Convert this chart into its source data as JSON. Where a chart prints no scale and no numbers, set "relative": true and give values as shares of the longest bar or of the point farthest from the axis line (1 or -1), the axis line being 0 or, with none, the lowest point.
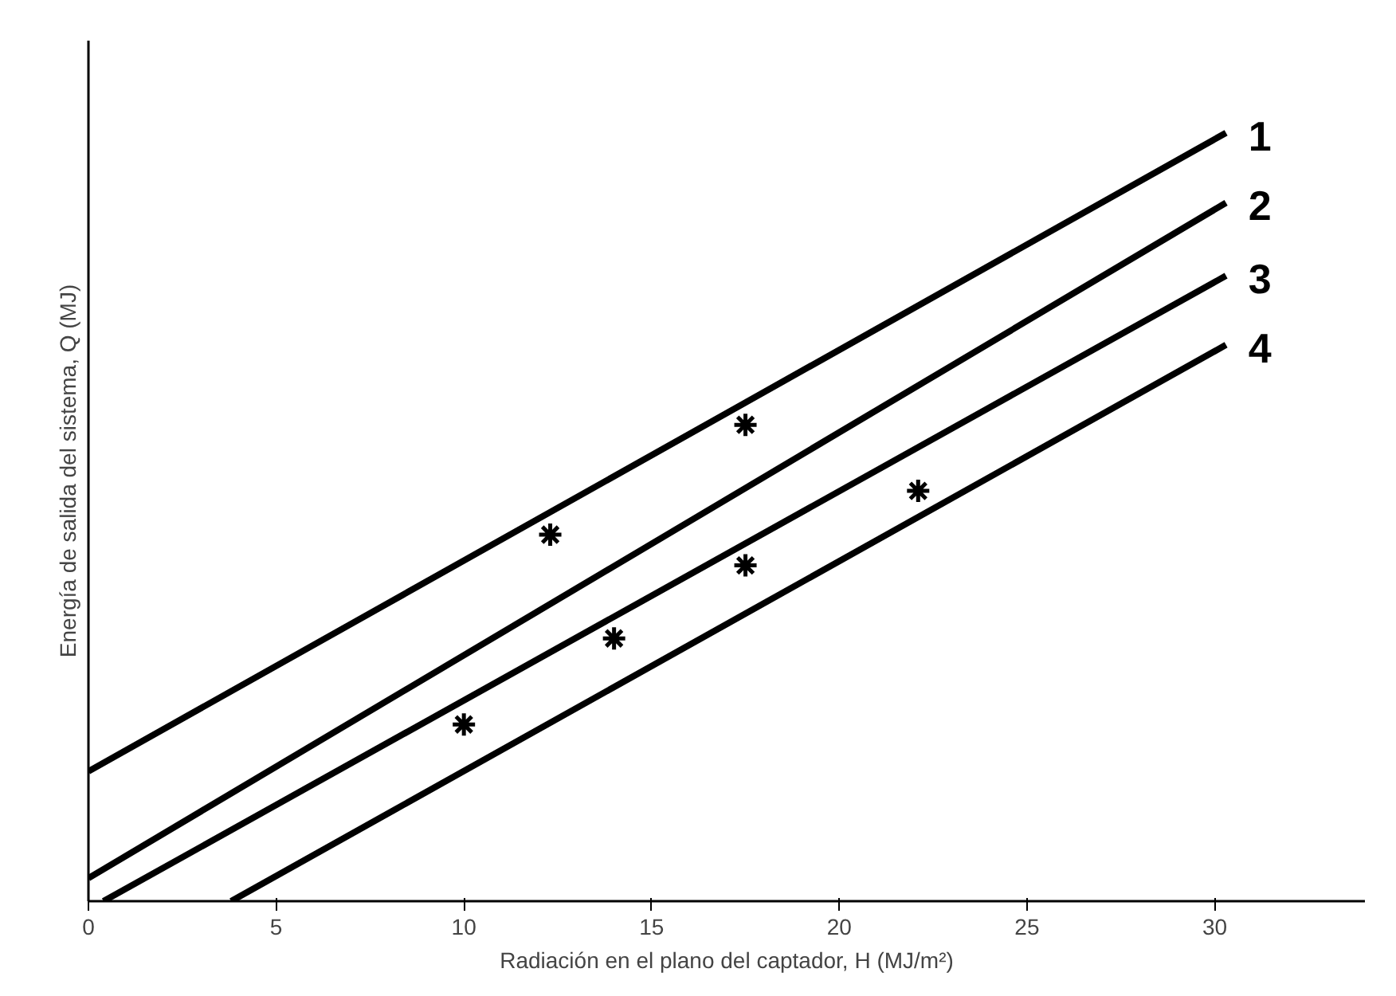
{
  "chart_data": {
    "type": "line",
    "relative": true,
    "xlabel": "Radiación en el plano del captador, H (MJ/m²)",
    "ylabel": "Energía de salida del sistema, Q (MJ)",
    "xlim": [
      0,
      34
    ],
    "xticks": [
      0,
      5,
      10,
      15,
      20,
      25,
      30
    ],
    "grid": false,
    "legend": false,
    "line_style": "solid",
    "marker": "none",
    "series": [
      {
        "name": "1",
        "color": "#000000",
        "x": [
          0,
          30.3
        ],
        "values": [
          0.169,
          1
        ]
      },
      {
        "name": "2",
        "color": "#000000",
        "x": [
          0,
          30.3
        ],
        "values": [
          0.03,
          0.909
        ]
      },
      {
        "name": "3",
        "color": "#000000",
        "x": [
          0.4,
          30.3
        ],
        "values": [
          0,
          0.814
        ]
      },
      {
        "name": "4",
        "color": "#000000",
        "x": [
          3.8,
          30.3
        ],
        "values": [
          0,
          0.724
        ]
      },
      {
        "type": "scatter",
        "marker": "cross",
        "color": "#000000",
        "x": [
          10,
          12.3,
          14,
          17.5,
          17.5,
          22.1
        ],
        "values": [
          0.23,
          0.477,
          0.342,
          0.62,
          0.437,
          0.534
        ]
      }
    ]
  }
}
